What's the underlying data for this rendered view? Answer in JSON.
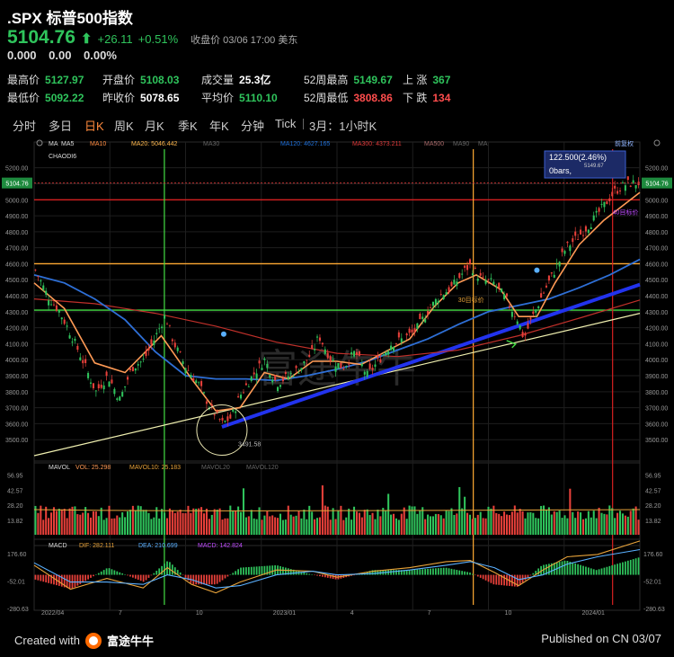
{
  "header": {
    "title": ".SPX 标普500指数",
    "price": "5104.76",
    "arrow": "⬆",
    "change": "+26.11",
    "change_pct": "+0.51%",
    "close_label": "收盘价 03/06 17:00 美东",
    "sub_line": "0.000   0.00 0.00%"
  },
  "stats": [
    {
      "key": "最高价",
      "value": "5127.97",
      "color": "up"
    },
    {
      "key": "开盘价",
      "value": "5108.03",
      "color": "up"
    },
    {
      "key": "成交量",
      "value": "25.3亿",
      "color": "wh"
    },
    {
      "key": "52周最高",
      "value": "5149.67",
      "color": "up"
    },
    {
      "key": "上 涨",
      "value": "367",
      "color": "up"
    },
    {
      "key": "最低价",
      "value": "5092.22",
      "color": "up"
    },
    {
      "key": "昨收价",
      "value": "5078.65",
      "color": "wh"
    },
    {
      "key": "平均价",
      "value": "5110.10",
      "color": "up"
    },
    {
      "key": "52周最低",
      "value": "3808.86",
      "color": "dn"
    },
    {
      "key": "下 跌",
      "value": "134",
      "color": "dn"
    }
  ],
  "tabs": [
    "分时",
    "多日",
    "日K",
    "周K",
    "月K",
    "季K",
    "年K",
    "分钟",
    "Tick",
    "3月：1小时K"
  ],
  "active_tab": "日K",
  "indicators": {
    "ma_row": [
      "MA",
      "MA5",
      "MA10",
      "MA20: 5046.442",
      "MA30",
      "MA120: 4627.165",
      "MA300: 4373.211",
      "MA500",
      "MA90",
      "MA"
    ],
    "chaodi": "CHAODI6",
    "annotation_box": "122.500(2.46%)",
    "annotation_bars": "0bars,",
    "annotation_hi": "5149.67",
    "low_mark": "3491.58",
    "current_tag": "5104.76",
    "top_right_label": "前复权",
    "label_a": "30目标价",
    "label_b": "40目标价",
    "mavol_row": [
      "MAVOL",
      "VOL: 25.298",
      "MAVOL10: 25.183",
      "MAVOL20",
      "MAVOL120"
    ],
    "macd_row": [
      "MACD",
      "DIF: 282.111",
      "DEA: 210.699",
      "MACD: 142.824"
    ],
    "watermark": "富途牛牛"
  },
  "chart_data": {
    "type": "candlestick",
    "x_labels": [
      "2022/04",
      "7",
      "10",
      "2023/01",
      "4",
      "7",
      "10",
      "2024/01"
    ],
    "price_axis": [
      "5200.00",
      "5100.00",
      "5000.00",
      "4900.00",
      "4800.00",
      "4700.00",
      "4600.00",
      "4500.00",
      "4400.00",
      "4300.00",
      "4200.00",
      "4100.00",
      "4000.00",
      "3900.00",
      "3800.00",
      "3700.00",
      "3600.00",
      "3500.00"
    ],
    "vol_axis": [
      "56.95",
      "42.57",
      "28.20",
      "13.82"
    ],
    "macd_axis": [
      "176.60",
      "-52.01",
      "-280.63"
    ],
    "price_range": [
      3400,
      5260
    ],
    "close_path": [
      [
        0,
        4560
      ],
      [
        0.02,
        4400
      ],
      [
        0.04,
        4300
      ],
      [
        0.06,
        4150
      ],
      [
        0.08,
        3980
      ],
      [
        0.1,
        3800
      ],
      [
        0.12,
        3900
      ],
      [
        0.14,
        3750
      ],
      [
        0.16,
        3950
      ],
      [
        0.18,
        4000
      ],
      [
        0.2,
        4150
      ],
      [
        0.215,
        4280
      ],
      [
        0.23,
        4100
      ],
      [
        0.25,
        3950
      ],
      [
        0.27,
        3850
      ],
      [
        0.29,
        3700
      ],
      [
        0.31,
        3600
      ],
      [
        0.325,
        3640
      ],
      [
        0.34,
        3780
      ],
      [
        0.36,
        3900
      ],
      [
        0.38,
        4000
      ],
      [
        0.4,
        3850
      ],
      [
        0.42,
        3900
      ],
      [
        0.44,
        3950
      ],
      [
        0.46,
        4050
      ],
      [
        0.47,
        4150
      ],
      [
        0.49,
        4000
      ],
      [
        0.51,
        3950
      ],
      [
        0.53,
        4050
      ],
      [
        0.55,
        3900
      ],
      [
        0.57,
        4000
      ],
      [
        0.59,
        4100
      ],
      [
        0.61,
        4130
      ],
      [
        0.63,
        4180
      ],
      [
        0.65,
        4300
      ],
      [
        0.67,
        4400
      ],
      [
        0.69,
        4450
      ],
      [
        0.71,
        4550
      ],
      [
        0.72,
        4590
      ],
      [
        0.74,
        4500
      ],
      [
        0.76,
        4480
      ],
      [
        0.78,
        4380
      ],
      [
        0.8,
        4250
      ],
      [
        0.81,
        4130
      ],
      [
        0.82,
        4230
      ],
      [
        0.84,
        4400
      ],
      [
        0.86,
        4550
      ],
      [
        0.88,
        4700
      ],
      [
        0.9,
        4770
      ],
      [
        0.92,
        4850
      ],
      [
        0.94,
        4950
      ],
      [
        0.96,
        5050
      ],
      [
        0.98,
        5100
      ],
      [
        1.0,
        5105
      ]
    ],
    "ma_lines": {
      "ma20": [
        [
          0,
          4480
        ],
        [
          0.05,
          4320
        ],
        [
          0.1,
          3980
        ],
        [
          0.15,
          3920
        ],
        [
          0.21,
          4150
        ],
        [
          0.26,
          3880
        ],
        [
          0.3,
          3680
        ],
        [
          0.34,
          3700
        ],
        [
          0.38,
          3920
        ],
        [
          0.42,
          3880
        ],
        [
          0.46,
          3990
        ],
        [
          0.5,
          3990
        ],
        [
          0.54,
          3970
        ],
        [
          0.58,
          4050
        ],
        [
          0.62,
          4130
        ],
        [
          0.66,
          4330
        ],
        [
          0.7,
          4480
        ],
        [
          0.73,
          4530
        ],
        [
          0.77,
          4440
        ],
        [
          0.8,
          4270
        ],
        [
          0.83,
          4270
        ],
        [
          0.86,
          4480
        ],
        [
          0.9,
          4720
        ],
        [
          0.94,
          4870
        ],
        [
          1.0,
          5046
        ]
      ],
      "ma120": [
        [
          0,
          4530
        ],
        [
          0.05,
          4480
        ],
        [
          0.1,
          4380
        ],
        [
          0.15,
          4250
        ],
        [
          0.2,
          4050
        ],
        [
          0.25,
          3900
        ],
        [
          0.3,
          3880
        ],
        [
          0.35,
          3880
        ],
        [
          0.4,
          3870
        ],
        [
          0.45,
          3900
        ],
        [
          0.5,
          3940
        ],
        [
          0.55,
          3990
        ],
        [
          0.6,
          4060
        ],
        [
          0.65,
          4130
        ],
        [
          0.7,
          4220
        ],
        [
          0.75,
          4300
        ],
        [
          0.8,
          4340
        ],
        [
          0.85,
          4380
        ],
        [
          0.9,
          4450
        ],
        [
          0.95,
          4530
        ],
        [
          1.0,
          4627
        ]
      ],
      "ma300": [
        [
          0,
          4380
        ],
        [
          0.1,
          4350
        ],
        [
          0.2,
          4290
        ],
        [
          0.3,
          4210
        ],
        [
          0.4,
          4110
        ],
        [
          0.5,
          4040
        ],
        [
          0.6,
          4020
        ],
        [
          0.7,
          4060
        ],
        [
          0.8,
          4150
        ],
        [
          0.9,
          4260
        ],
        [
          1.0,
          4373
        ]
      ]
    },
    "hlines": [
      {
        "value": 5000,
        "color": "#d62020"
      },
      {
        "value": 4600,
        "color": "#ffaa33"
      },
      {
        "value": 4310,
        "color": "#44dd44"
      }
    ],
    "vlines": [
      {
        "x": 0.215,
        "color": "#44dd44"
      },
      {
        "x": 0.725,
        "color": "#ffaa33"
      },
      {
        "x": 0.955,
        "color": "#d62020"
      }
    ],
    "trendlines": [
      {
        "from": [
          0,
          3400
        ],
        "to": [
          1.0,
          4290
        ],
        "color": "#f0f0b0",
        "width": 1.2
      },
      {
        "from": [
          0.31,
          3580
        ],
        "to": [
          1.0,
          4470
        ],
        "color": "#2233ee",
        "width": 4
      }
    ],
    "low_circle": {
      "x": 0.31,
      "y": 3560
    },
    "volumes_note": "mixed green/red bars around 20-30",
    "macd_dif": [
      [
        0,
        80
      ],
      [
        0.06,
        -120
      ],
      [
        0.12,
        -30
      ],
      [
        0.18,
        -110
      ],
      [
        0.22,
        60
      ],
      [
        0.26,
        -80
      ],
      [
        0.3,
        -150
      ],
      [
        0.34,
        -60
      ],
      [
        0.4,
        40
      ],
      [
        0.46,
        30
      ],
      [
        0.5,
        -20
      ],
      [
        0.56,
        30
      ],
      [
        0.62,
        60
      ],
      [
        0.68,
        110
      ],
      [
        0.72,
        120
      ],
      [
        0.76,
        20
      ],
      [
        0.8,
        -90
      ],
      [
        0.84,
        40
      ],
      [
        0.88,
        150
      ],
      [
        0.93,
        170
      ],
      [
        1.0,
        282
      ]
    ],
    "macd_dea": [
      [
        0,
        100
      ],
      [
        0.06,
        -60
      ],
      [
        0.12,
        -60
      ],
      [
        0.18,
        -80
      ],
      [
        0.22,
        0
      ],
      [
        0.26,
        -40
      ],
      [
        0.3,
        -110
      ],
      [
        0.34,
        -90
      ],
      [
        0.4,
        0
      ],
      [
        0.46,
        30
      ],
      [
        0.5,
        0
      ],
      [
        0.56,
        10
      ],
      [
        0.62,
        40
      ],
      [
        0.68,
        80
      ],
      [
        0.72,
        110
      ],
      [
        0.76,
        60
      ],
      [
        0.8,
        -40
      ],
      [
        0.84,
        0
      ],
      [
        0.88,
        90
      ],
      [
        0.93,
        150
      ],
      [
        1.0,
        210
      ]
    ]
  },
  "footer": {
    "created_with": "Created with",
    "brand": "富途牛牛",
    "published": "Published on CN 03/07"
  },
  "colors": {
    "up": "#2fc45c",
    "down": "#e8403a",
    "bg": "#000000",
    "grid": "#262626"
  }
}
